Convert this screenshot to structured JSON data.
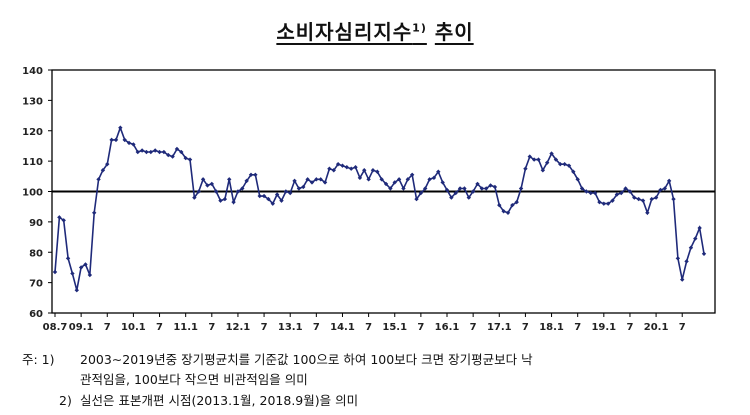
{
  "title": {
    "text": "소비자심리지수",
    "sup": "1)",
    "suffix": "추이"
  },
  "chart_data": {
    "type": "line",
    "title": "소비자심리지수1) 추이",
    "ylim": [
      60,
      140
    ],
    "yticks": [
      60,
      70,
      80,
      90,
      100,
      110,
      120,
      130,
      140
    ],
    "xticks": [
      "08.7",
      "09.1",
      "7",
      "10.1",
      "7",
      "11.1",
      "7",
      "12.1",
      "7",
      "13.1",
      "7",
      "14.1",
      "7",
      "15.1",
      "7",
      "16.1",
      "7",
      "17.1",
      "7",
      "18.1",
      "7",
      "19.1",
      "7",
      "20.1",
      "7"
    ],
    "reference_line": 100,
    "grid": false,
    "legend": "none",
    "marker": "diamond",
    "series": [
      {
        "color": "#1f2a7a",
        "values": [
          73.5,
          91.5,
          90.5,
          78.0,
          73.0,
          67.5,
          75.0,
          76.0,
          72.5,
          93.0,
          104.0,
          107.0,
          109.0,
          117.0,
          117.0,
          121.0,
          117.0,
          116.0,
          115.5,
          113.0,
          113.5,
          113.0,
          113.0,
          113.5,
          113.0,
          113.0,
          112.0,
          111.5,
          114.0,
          113.0,
          111.0,
          110.5,
          98.0,
          100.0,
          104.0,
          102.0,
          102.5,
          100.0,
          97.0,
          97.5,
          104.0,
          96.5,
          100.0,
          101.0,
          103.5,
          105.5,
          105.5,
          98.5,
          98.5,
          97.5,
          96.0,
          99.0,
          97.0,
          100.0,
          99.5,
          103.5,
          101.0,
          101.5,
          104.0,
          103.0,
          104.0,
          104.0,
          103.0,
          107.5,
          107.0,
          109.0,
          108.5,
          108.0,
          107.5,
          108.0,
          104.5,
          107.0,
          104.0,
          107.0,
          106.5,
          104.0,
          102.5,
          101.0,
          103.0,
          104.0,
          101.0,
          104.0,
          105.5,
          97.5,
          99.5,
          101.0,
          104.0,
          104.5,
          106.5,
          103.0,
          100.5,
          98.0,
          99.5,
          101.0,
          101.0,
          98.0,
          100.0,
          102.5,
          101.0,
          101.0,
          102.0,
          101.5,
          95.5,
          93.5,
          93.0,
          95.5,
          96.5,
          101.0,
          107.5,
          111.5,
          110.5,
          110.5,
          107.0,
          109.5,
          112.5,
          110.5,
          109.0,
          109.0,
          108.5,
          106.5,
          104.0,
          101.0,
          100.0,
          99.5,
          99.5,
          96.5,
          96.0,
          96.0,
          97.0,
          99.0,
          99.5,
          101.0,
          100.0,
          98.0,
          97.5,
          97.0,
          93.0,
          97.5,
          98.0,
          100.5,
          101.0,
          103.5,
          97.5,
          78.0,
          71.0,
          77.0,
          81.5,
          84.5,
          88.0,
          79.5
        ]
      }
    ]
  },
  "notes": {
    "n1_head": "주: 1)",
    "n1_line1": "2003∼2019년중 장기평균치를 기준값 100으로 하여 100보다 크면 장기평균보다 낙",
    "n1_line2": "관적임을, 100보다 작으면 비관적임을 의미",
    "n2_head": "2)",
    "n2_line1": "실선은 표본개편 시점(2013.1월, 2018.9월)을 의미"
  }
}
